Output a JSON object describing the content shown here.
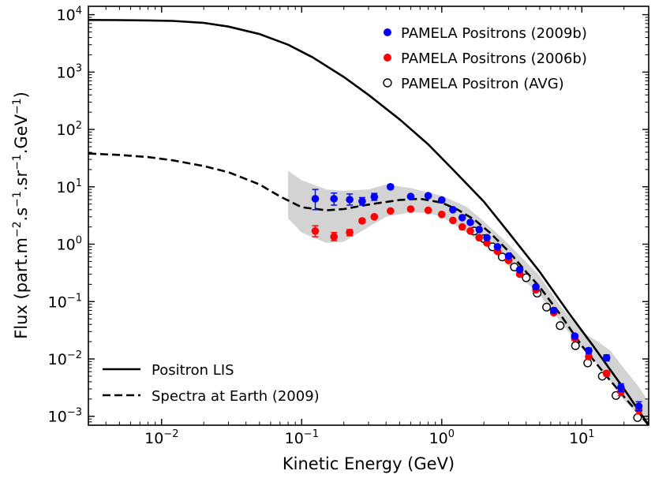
{
  "chart_data": {
    "type": "scatter",
    "title": "",
    "xlabel": "Kinetic Energy (GeV)",
    "ylabel": {
      "base": "Flux (part.m",
      "sup1": "−2",
      "mid1": ".s",
      "sup2": "−1",
      "mid2": ".sr",
      "sup3": "−1",
      "mid3": ".GeV",
      "sup4": "−1",
      "end": ")"
    },
    "xscale": "log",
    "yscale": "log",
    "xlim": [
      0.003,
      30
    ],
    "ylim": [
      0.0007,
      14000
    ],
    "x_ticks": [
      {
        "value": 0.01,
        "base": "10",
        "exp": "−2"
      },
      {
        "value": 0.1,
        "base": "10",
        "exp": "−1"
      },
      {
        "value": 1,
        "base": "10",
        "exp": "0"
      },
      {
        "value": 10,
        "base": "10",
        "exp": "1"
      }
    ],
    "y_ticks": [
      {
        "value": 0.001,
        "base": "10",
        "exp": "−3"
      },
      {
        "value": 0.01,
        "base": "10",
        "exp": "−2"
      },
      {
        "value": 0.1,
        "base": "10",
        "exp": "−1"
      },
      {
        "value": 1,
        "base": "10",
        "exp": "0"
      },
      {
        "value": 10,
        "base": "10",
        "exp": "1"
      },
      {
        "value": 100,
        "base": "10",
        "exp": "2"
      },
      {
        "value": 1000,
        "base": "10",
        "exp": "3"
      },
      {
        "value": 10000,
        "base": "10",
        "exp": "4"
      }
    ],
    "legend_top": [
      {
        "label": "PAMELA Positrons (2009b)",
        "marker": "filled",
        "color": "#0000ff"
      },
      {
        "label": "PAMELA Positrons (2006b)",
        "marker": "filled",
        "color": "#ff0000"
      },
      {
        "label": "PAMELA Positron (AVG)",
        "marker": "open",
        "color": "#000000"
      }
    ],
    "legend_bottom": [
      {
        "label": "Positron LIS",
        "style": "solid"
      },
      {
        "label": "Spectra at Earth (2009)",
        "style": "dashed"
      }
    ],
    "series": [
      {
        "name": "PAMELA Positrons (2009b)",
        "color": "#0000ff",
        "marker": "filled",
        "points": [
          {
            "x": 0.125,
            "y": 6.2,
            "lo": 4.0,
            "hi": 9.0
          },
          {
            "x": 0.17,
            "y": 6.2,
            "lo": 4.8,
            "hi": 7.8
          },
          {
            "x": 0.22,
            "y": 6.0,
            "lo": 4.8,
            "hi": 7.5
          },
          {
            "x": 0.27,
            "y": 5.6,
            "lo": 4.8,
            "hi": 6.5
          },
          {
            "x": 0.33,
            "y": 6.7,
            "lo": 5.8,
            "hi": 7.7
          },
          {
            "x": 0.43,
            "y": 10.0,
            "lo": 9.2,
            "hi": 10.9
          },
          {
            "x": 0.6,
            "y": 6.8,
            "lo": 6.4,
            "hi": 7.2
          },
          {
            "x": 0.8,
            "y": 7.0,
            "lo": 6.6,
            "hi": 7.4
          },
          {
            "x": 1.0,
            "y": 5.9,
            "lo": 5.6,
            "hi": 6.2
          },
          {
            "x": 1.2,
            "y": 4.0,
            "lo": 3.8,
            "hi": 4.2
          },
          {
            "x": 1.4,
            "y": 2.9,
            "lo": 2.75,
            "hi": 3.05
          },
          {
            "x": 1.6,
            "y": 2.4,
            "lo": 2.25,
            "hi": 2.55
          },
          {
            "x": 1.85,
            "y": 1.8,
            "lo": 1.7,
            "hi": 1.9
          },
          {
            "x": 2.1,
            "y": 1.3,
            "lo": 1.22,
            "hi": 1.38
          },
          {
            "x": 2.5,
            "y": 0.9,
            "lo": 0.85,
            "hi": 0.95
          },
          {
            "x": 3.0,
            "y": 0.62,
            "lo": 0.58,
            "hi": 0.66
          },
          {
            "x": 3.6,
            "y": 0.36,
            "lo": 0.34,
            "hi": 0.38
          },
          {
            "x": 4.7,
            "y": 0.18,
            "lo": 0.168,
            "hi": 0.192
          },
          {
            "x": 6.3,
            "y": 0.07,
            "lo": 0.065,
            "hi": 0.075
          },
          {
            "x": 8.9,
            "y": 0.025,
            "lo": 0.023,
            "hi": 0.027
          },
          {
            "x": 11.2,
            "y": 0.014,
            "lo": 0.0125,
            "hi": 0.0155
          },
          {
            "x": 15.0,
            "y": 0.0105,
            "lo": 0.0092,
            "hi": 0.0118
          },
          {
            "x": 19.0,
            "y": 0.0032,
            "lo": 0.0027,
            "hi": 0.0037
          },
          {
            "x": 25.5,
            "y": 0.0015,
            "lo": 0.00125,
            "hi": 0.0018
          }
        ]
      },
      {
        "name": "PAMELA Positrons (2006b)",
        "color": "#ff0000",
        "marker": "filled",
        "points": [
          {
            "x": 0.125,
            "y": 1.7,
            "lo": 1.35,
            "hi": 2.1
          },
          {
            "x": 0.17,
            "y": 1.35,
            "lo": 1.15,
            "hi": 1.6
          },
          {
            "x": 0.22,
            "y": 1.6,
            "lo": 1.4,
            "hi": 1.8
          },
          {
            "x": 0.27,
            "y": 2.55,
            "lo": 2.35,
            "hi": 2.75
          },
          {
            "x": 0.33,
            "y": 3.0,
            "lo": 2.85,
            "hi": 3.15
          },
          {
            "x": 0.43,
            "y": 3.8,
            "lo": 3.6,
            "hi": 4.0
          },
          {
            "x": 0.6,
            "y": 4.1,
            "lo": 3.9,
            "hi": 4.3
          },
          {
            "x": 0.8,
            "y": 3.9,
            "lo": 3.7,
            "hi": 4.1
          },
          {
            "x": 1.0,
            "y": 3.3,
            "lo": 3.15,
            "hi": 3.45
          },
          {
            "x": 1.2,
            "y": 2.6,
            "lo": 2.5,
            "hi": 2.7
          },
          {
            "x": 1.4,
            "y": 2.0,
            "lo": 1.92,
            "hi": 2.08
          },
          {
            "x": 1.6,
            "y": 1.7,
            "lo": 1.63,
            "hi": 1.77
          },
          {
            "x": 1.85,
            "y": 1.3,
            "lo": 1.25,
            "hi": 1.35
          },
          {
            "x": 2.1,
            "y": 1.05,
            "lo": 1.0,
            "hi": 1.1
          },
          {
            "x": 2.5,
            "y": 0.75,
            "lo": 0.72,
            "hi": 0.78
          },
          {
            "x": 3.0,
            "y": 0.52,
            "lo": 0.5,
            "hi": 0.54
          },
          {
            "x": 3.6,
            "y": 0.3,
            "lo": 0.29,
            "hi": 0.31
          },
          {
            "x": 4.7,
            "y": 0.16,
            "lo": 0.152,
            "hi": 0.168
          },
          {
            "x": 6.3,
            "y": 0.064,
            "lo": 0.06,
            "hi": 0.068
          },
          {
            "x": 8.9,
            "y": 0.023,
            "lo": 0.021,
            "hi": 0.025
          },
          {
            "x": 11.2,
            "y": 0.011,
            "lo": 0.0101,
            "hi": 0.0119
          },
          {
            "x": 15.0,
            "y": 0.0056,
            "lo": 0.005,
            "hi": 0.0062
          },
          {
            "x": 19.0,
            "y": 0.0027,
            "lo": 0.0023,
            "hi": 0.0031
          },
          {
            "x": 25.5,
            "y": 0.0013,
            "lo": 0.0011,
            "hi": 0.0015
          }
        ]
      },
      {
        "name": "PAMELA Positron (AVG)",
        "color": "#000000",
        "marker": "open",
        "points": [
          {
            "x": 1.7,
            "y": 1.7
          },
          {
            "x": 2.0,
            "y": 1.25
          },
          {
            "x": 2.3,
            "y": 0.9
          },
          {
            "x": 2.7,
            "y": 0.6
          },
          {
            "x": 3.3,
            "y": 0.4
          },
          {
            "x": 4.0,
            "y": 0.26
          },
          {
            "x": 4.8,
            "y": 0.14
          },
          {
            "x": 5.6,
            "y": 0.08
          },
          {
            "x": 7.0,
            "y": 0.038
          },
          {
            "x": 9.0,
            "y": 0.017
          },
          {
            "x": 11.0,
            "y": 0.0085
          },
          {
            "x": 14.0,
            "y": 0.005
          },
          {
            "x": 17.5,
            "y": 0.0023
          },
          {
            "x": 25.0,
            "y": 0.00095
          }
        ]
      }
    ],
    "lines": [
      {
        "name": "Positron LIS",
        "style": "solid",
        "color": "#000000",
        "points": [
          [
            0.003,
            8100
          ],
          [
            0.005,
            8050
          ],
          [
            0.008,
            7950
          ],
          [
            0.012,
            7800
          ],
          [
            0.02,
            7200
          ],
          [
            0.03,
            6200
          ],
          [
            0.05,
            4600
          ],
          [
            0.08,
            3000
          ],
          [
            0.12,
            1800
          ],
          [
            0.2,
            820
          ],
          [
            0.3,
            400
          ],
          [
            0.5,
            150
          ],
          [
            0.8,
            55
          ],
          [
            1.2,
            20
          ],
          [
            2.0,
            5.5
          ],
          [
            3.0,
            1.6
          ],
          [
            5.0,
            0.33
          ],
          [
            8.0,
            0.065
          ],
          [
            12.0,
            0.017
          ],
          [
            20.0,
            0.003
          ],
          [
            30.0,
            0.0007
          ]
        ]
      },
      {
        "name": "Spectra at Earth (2009)",
        "style": "dashed",
        "color": "#000000",
        "points": [
          [
            0.003,
            38
          ],
          [
            0.005,
            36
          ],
          [
            0.008,
            33
          ],
          [
            0.012,
            29
          ],
          [
            0.02,
            23
          ],
          [
            0.03,
            18
          ],
          [
            0.05,
            11
          ],
          [
            0.07,
            6.8
          ],
          [
            0.1,
            4.4
          ],
          [
            0.15,
            3.9
          ],
          [
            0.2,
            4.1
          ],
          [
            0.3,
            4.9
          ],
          [
            0.5,
            5.9
          ],
          [
            0.7,
            6.2
          ],
          [
            1.0,
            5.3
          ],
          [
            1.3,
            4.0
          ],
          [
            1.7,
            2.7
          ],
          [
            2.2,
            1.6
          ],
          [
            3.0,
            0.75
          ],
          [
            4.0,
            0.33
          ],
          [
            5.0,
            0.18
          ],
          [
            7.0,
            0.06
          ],
          [
            10.0,
            0.017
          ],
          [
            15.0,
            0.005
          ],
          [
            20.0,
            0.0022
          ],
          [
            30.0,
            0.0007
          ]
        ]
      }
    ],
    "band": {
      "upper": [
        [
          0.08,
          19
        ],
        [
          0.1,
          13
        ],
        [
          0.15,
          9
        ],
        [
          0.2,
          8.5
        ],
        [
          0.3,
          9
        ],
        [
          0.4,
          11
        ],
        [
          0.6,
          9.5
        ],
        [
          0.8,
          8
        ],
        [
          1.0,
          7
        ],
        [
          1.5,
          4.5
        ],
        [
          2.0,
          2.5
        ],
        [
          3.0,
          1.0
        ],
        [
          5.0,
          0.28
        ],
        [
          7.0,
          0.085
        ],
        [
          10.0,
          0.03
        ],
        [
          13.0,
          0.02
        ],
        [
          16.0,
          0.014
        ],
        [
          19.0,
          0.008
        ],
        [
          25.0,
          0.0035
        ],
        [
          30.0,
          0.0018
        ]
      ],
      "lower": [
        [
          0.08,
          2.8
        ],
        [
          0.1,
          1.6
        ],
        [
          0.15,
          1.05
        ],
        [
          0.2,
          1.1
        ],
        [
          0.3,
          2.0
        ],
        [
          0.4,
          3.0
        ],
        [
          0.6,
          3.6
        ],
        [
          0.8,
          3.5
        ],
        [
          1.0,
          3.0
        ],
        [
          1.5,
          1.6
        ],
        [
          2.0,
          1.0
        ],
        [
          3.0,
          0.42
        ],
        [
          5.0,
          0.13
        ],
        [
          7.0,
          0.045
        ],
        [
          10.0,
          0.015
        ],
        [
          13.0,
          0.008
        ],
        [
          16.0,
          0.004
        ],
        [
          19.0,
          0.0022
        ],
        [
          25.0,
          0.0011
        ],
        [
          30.0,
          0.0008
        ]
      ]
    }
  }
}
